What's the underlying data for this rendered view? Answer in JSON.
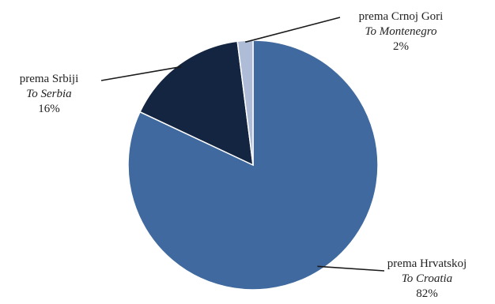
{
  "chart_data": {
    "type": "pie",
    "title": "",
    "start_angle_deg": -90,
    "direction": "clockwise",
    "slices": [
      {
        "name": "prema Hrvatskoj",
        "name_en": "To Croatia",
        "value": 82,
        "label": "82%",
        "color": "#406a9f"
      },
      {
        "name": "prema Srbiji",
        "name_en": "To Serbia",
        "value": 16,
        "label": "16%",
        "color": "#132540"
      },
      {
        "name": "prema Crnoj Gori",
        "name_en": "To Montenegro",
        "value": 2,
        "label": "2%",
        "color": "#aebcd8"
      }
    ]
  }
}
